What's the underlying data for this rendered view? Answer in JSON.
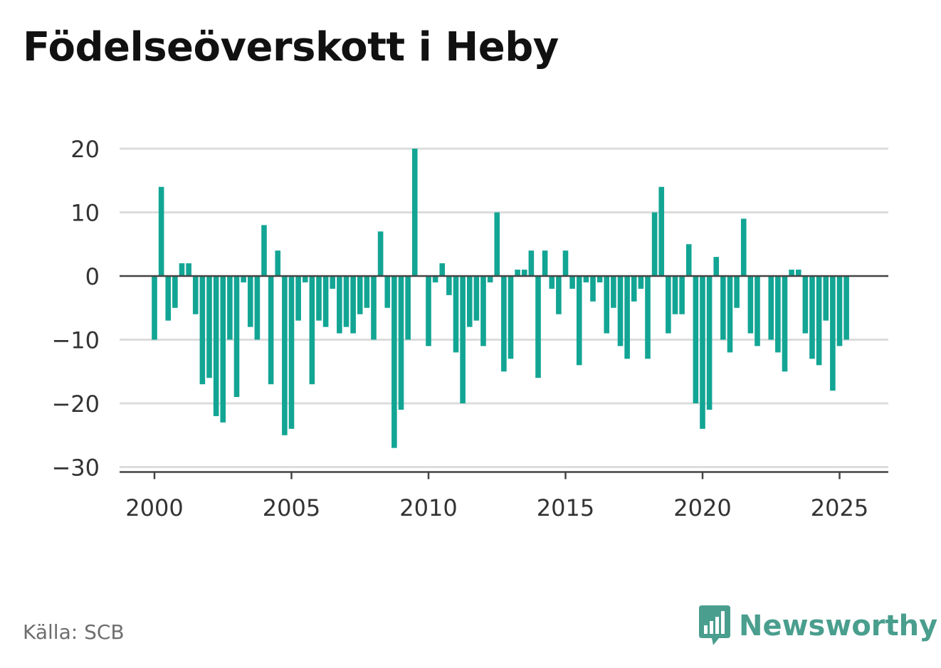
{
  "title": "Födelseöverskott i Heby",
  "source": "Källa: SCB",
  "brand": {
    "name": "Newsworthy",
    "icon": "bar-chart-speech-bubble-icon",
    "color": "#4a9e8e"
  },
  "colors": {
    "bar": "#12a594",
    "grid": "#dcdcdc",
    "zero_line": "#444444",
    "axis": "#444444"
  },
  "chart_data": {
    "type": "bar",
    "title": "Födelseöverskott i Heby",
    "xlabel": "",
    "ylabel": "",
    "ylim": [
      -30,
      20
    ],
    "yticks": [
      20,
      10,
      0,
      -10,
      -20,
      -30
    ],
    "ytick_labels": [
      "20",
      "10",
      "0",
      "−10",
      "−20",
      "−30"
    ],
    "xlim": [
      1999.6,
      2026.8
    ],
    "xticks": [
      2000,
      2005,
      2010,
      2015,
      2020,
      2025
    ],
    "xtick_labels": [
      "2000",
      "2005",
      "2010",
      "2015",
      "2020",
      "2025"
    ],
    "grid": true,
    "period": "quarterly",
    "start": "2000 Q1",
    "values": [
      -10,
      14,
      -7,
      -5,
      2,
      2,
      -6,
      -17,
      -16,
      -22,
      -23,
      -10,
      -19,
      -1,
      -8,
      -10,
      8,
      -17,
      4,
      -25,
      -24,
      -7,
      -1,
      -17,
      -7,
      -8,
      -2,
      -9,
      -8,
      -9,
      -6,
      -5,
      -10,
      7,
      -5,
      -27,
      -21,
      -10,
      20,
      0,
      -11,
      -1,
      2,
      -3,
      -12,
      -20,
      -8,
      -7,
      -11,
      -1,
      10,
      -15,
      -13,
      1,
      1,
      4,
      -16,
      4,
      -2,
      -6,
      4,
      -2,
      -14,
      -1,
      -4,
      -1,
      -9,
      -5,
      -11,
      -13,
      -4,
      -2,
      -13,
      10,
      14,
      -9,
      -6,
      -6,
      5,
      -20,
      -24,
      -21,
      3,
      -10,
      -12,
      -5,
      9,
      -9,
      -11,
      0,
      -10,
      -12,
      -15,
      1,
      1,
      -9,
      -13,
      -14,
      -7,
      -18,
      -11,
      -10
    ]
  }
}
